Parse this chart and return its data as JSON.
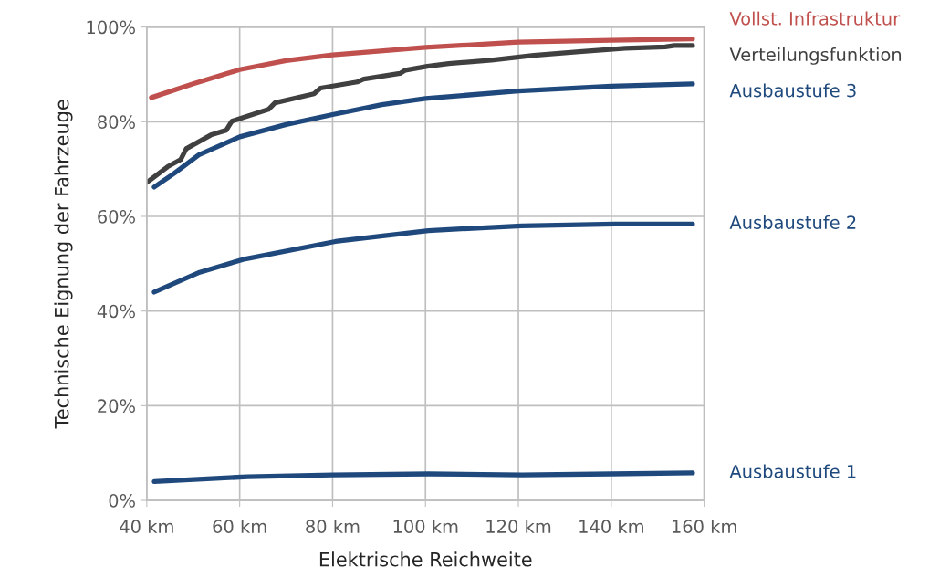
{
  "chart_data": {
    "type": "line",
    "xlabel": "Elektrische Reichweite",
    "ylabel": "Technische Eignung der Fahrzeuge",
    "xlim": [
      40,
      160
    ],
    "xticks": [
      {
        "value": 40,
        "label": "40 km"
      },
      {
        "value": 60,
        "label": "60 km"
      },
      {
        "value": 80,
        "label": "80 km"
      },
      {
        "value": 100,
        "label": "100 km"
      },
      {
        "value": 120,
        "label": "120 km"
      },
      {
        "value": 140,
        "label": "140 km"
      },
      {
        "value": 160,
        "label": "160 km"
      }
    ],
    "ylim": [
      0,
      100
    ],
    "yticks": [
      {
        "value": 0,
        "label": "0%"
      },
      {
        "value": 20,
        "label": "20%"
      },
      {
        "value": 40,
        "label": "40%"
      },
      {
        "value": 60,
        "label": "60%"
      },
      {
        "value": 80,
        "label": "80%"
      },
      {
        "value": 100,
        "label": "100%"
      }
    ],
    "grid": true,
    "marker": "none",
    "line_style": "solid",
    "legend": false,
    "series": [
      {
        "name": "Vollst. Infrastruktur",
        "color": "#c0504d",
        "x": [
          41,
          50,
          60,
          70,
          80,
          100,
          120,
          140,
          157.5
        ],
        "values": [
          85.1,
          88.0,
          91.0,
          92.9,
          94.1,
          95.7,
          96.8,
          97.2,
          97.5
        ]
      },
      {
        "name": "Verteilungsfunktion",
        "color": "#404040",
        "x": [
          40,
          40.6,
          44.5,
          47.3,
          48.5,
          53.8,
          57.1,
          58.3,
          66.2,
          67.6,
          76.0,
          77.4,
          85.3,
          86.7,
          94.5,
          95.7,
          100.4,
          105,
          114.2,
          123.3,
          133.1,
          143,
          151.6,
          153.6,
          157.5
        ],
        "values": [
          67.2,
          67.6,
          70.5,
          72.0,
          74.3,
          77.2,
          78.2,
          80.1,
          82.6,
          84.0,
          85.9,
          87.1,
          88.4,
          89.0,
          90.2,
          90.9,
          91.7,
          92.3,
          93.0,
          94.0,
          94.8,
          95.5,
          95.8,
          96.1,
          96.1
        ]
      },
      {
        "name": "Ausbaustufe 3",
        "color": "#1f497d",
        "x": [
          41.6,
          45.9,
          51.2,
          60,
          70,
          80,
          90.6,
          100,
          120,
          140,
          157.5
        ],
        "values": [
          66.2,
          69.1,
          73.0,
          76.8,
          79.4,
          81.5,
          83.6,
          84.9,
          86.5,
          87.5,
          88.0
        ]
      },
      {
        "name": "Ausbaustufe 2",
        "color": "#1f497d",
        "x": [
          41.6,
          51.4,
          60.7,
          80.6,
          100.6,
          120.7,
          140.8,
          157.5
        ],
        "values": [
          44.0,
          48.2,
          50.9,
          54.7,
          57.0,
          58.0,
          58.4,
          58.4
        ]
      },
      {
        "name": "Ausbaustufe 1",
        "color": "#1f497d",
        "x": [
          41.6,
          61.7,
          80,
          100.6,
          120.7,
          140,
          157.5
        ],
        "values": [
          4.0,
          5.0,
          5.4,
          5.6,
          5.4,
          5.6,
          5.8
        ]
      }
    ]
  }
}
